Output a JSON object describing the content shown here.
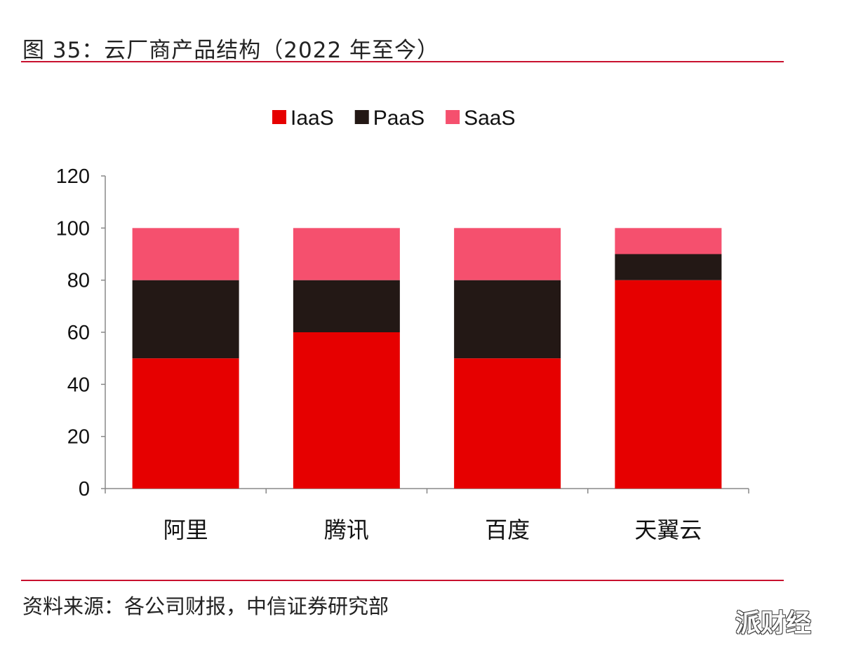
{
  "title": "图 35：云厂商产品结构（2022 年至今）",
  "source": "资料来源：各公司财报，中信证券研究部",
  "watermark": "派财经",
  "chart_data": {
    "type": "bar",
    "stacked": true,
    "categories": [
      "阿里",
      "腾讯",
      "百度",
      "天翼云"
    ],
    "series": [
      {
        "name": "IaaS",
        "values": [
          50,
          60,
          50,
          80
        ],
        "color": "#E60000"
      },
      {
        "name": "PaaS",
        "values": [
          30,
          20,
          30,
          10
        ],
        "color": "#231815"
      },
      {
        "name": "SaaS",
        "values": [
          20,
          20,
          20,
          10
        ],
        "color": "#F5506E"
      }
    ],
    "ylim": [
      0,
      120
    ],
    "yticks": [
      0,
      20,
      40,
      60,
      80,
      100,
      120
    ],
    "legend": "top",
    "grid": false
  }
}
